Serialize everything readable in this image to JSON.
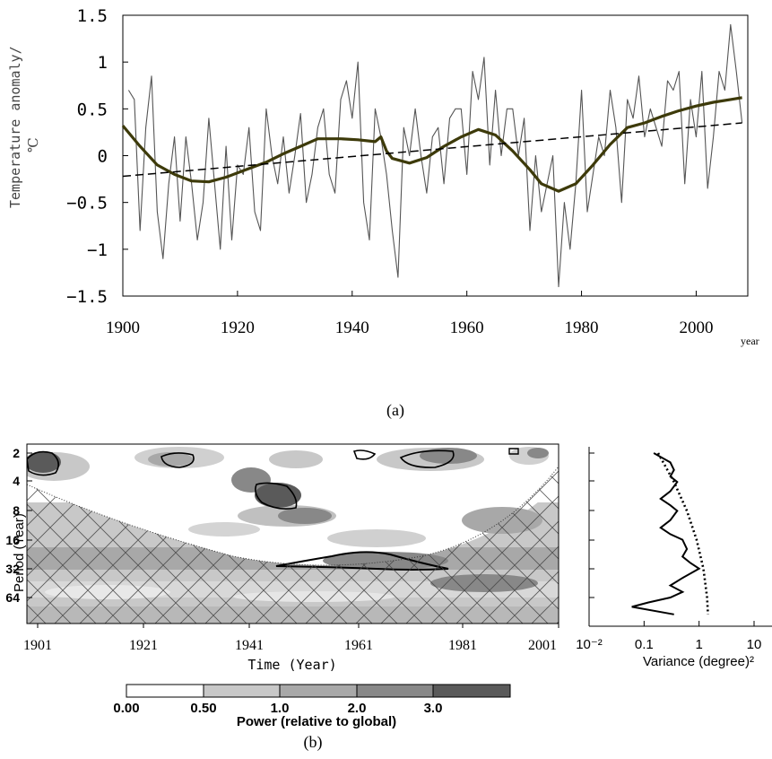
{
  "figure": {
    "caption_a": "(a)",
    "caption_b": "(b)"
  },
  "chart_data": [
    {
      "type": "line",
      "panel": "(a)",
      "ylabel_line1": "Temperature anomaly/",
      "ylabel_line2": "℃",
      "xlabel": "year",
      "xlim": [
        1900,
        2009
      ],
      "ylim": [
        -1.5,
        1.5
      ],
      "x_ticks": [
        1900,
        1920,
        1940,
        1960,
        1980,
        2000
      ],
      "y_ticks": [
        1.5,
        1,
        0.5,
        0,
        -0.5,
        -1,
        -1.5
      ],
      "y_tick_labels": [
        "1.5",
        "1",
        "0.5",
        "0",
        "−0.5",
        "−1",
        "−1.5"
      ],
      "series": [
        {
          "style": "thin grey line",
          "color": "#555555",
          "x": [
            1901,
            1902,
            1903,
            1904,
            1905,
            1906,
            1907,
            1908,
            1909,
            1910,
            1911,
            1912,
            1913,
            1914,
            1915,
            1916,
            1917,
            1918,
            1919,
            1920,
            1921,
            1922,
            1923,
            1924,
            1925,
            1926,
            1927,
            1928,
            1929,
            1930,
            1931,
            1932,
            1933,
            1934,
            1935,
            1936,
            1937,
            1938,
            1939,
            1940,
            1941,
            1942,
            1943,
            1944,
            1945,
            1946,
            1947,
            1948,
            1949,
            1950,
            1951,
            1952,
            1953,
            1954,
            1955,
            1956,
            1957,
            1958,
            1959,
            1960,
            1961,
            1962,
            1963,
            1964,
            1965,
            1966,
            1967,
            1968,
            1969,
            1970,
            1971,
            1972,
            1973,
            1974,
            1975,
            1976,
            1977,
            1978,
            1979,
            1980,
            1981,
            1982,
            1983,
            1984,
            1985,
            1986,
            1987,
            1988,
            1989,
            1990,
            1991,
            1992,
            1993,
            1994,
            1995,
            1996,
            1997,
            1998,
            1999,
            2000,
            2001,
            2002,
            2003,
            2004,
            2005,
            2006,
            2007,
            2008
          ],
          "values": [
            0.7,
            0.6,
            -0.8,
            0.3,
            0.85,
            -0.6,
            -1.1,
            -0.3,
            0.2,
            -0.7,
            0.2,
            -0.3,
            -0.9,
            -0.5,
            0.4,
            -0.3,
            -1.0,
            0.1,
            -0.9,
            -0.1,
            -0.2,
            0.3,
            -0.6,
            -0.8,
            0.5,
            0.0,
            -0.3,
            0.2,
            -0.4,
            0.0,
            0.45,
            -0.5,
            -0.2,
            0.3,
            0.5,
            -0.2,
            -0.4,
            0.6,
            0.8,
            0.4,
            1.0,
            -0.5,
            -0.9,
            0.5,
            0.2,
            -0.2,
            -0.8,
            -1.3,
            0.3,
            0.0,
            0.5,
            0.0,
            -0.4,
            0.2,
            0.3,
            -0.3,
            0.4,
            0.5,
            0.5,
            -0.2,
            0.9,
            0.6,
            1.05,
            -0.1,
            0.7,
            0.0,
            0.5,
            0.5,
            0.0,
            0.4,
            -0.8,
            0.0,
            -0.6,
            -0.3,
            0.0,
            -1.4,
            -0.5,
            -1.0,
            -0.3,
            0.7,
            -0.6,
            -0.2,
            0.2,
            0.0,
            0.7,
            0.3,
            -0.5,
            0.6,
            0.4,
            0.85,
            0.2,
            0.5,
            0.3,
            0.1,
            0.8,
            0.7,
            0.9,
            -0.3,
            0.6,
            0.2,
            0.9,
            -0.35,
            0.2,
            0.9,
            0.7,
            1.4,
            0.9,
            0.35
          ]
        },
        {
          "style": "thick olive smoothed curve",
          "color": "#3d3a0a",
          "x": [
            1900,
            1903,
            1906,
            1909,
            1912,
            1915,
            1918,
            1921,
            1925,
            1928,
            1931,
            1934,
            1938,
            1941,
            1944,
            1945,
            1946,
            1947,
            1950,
            1953,
            1956,
            1959,
            1962,
            1965,
            1968,
            1971,
            1973,
            1976,
            1979,
            1982,
            1985,
            1988,
            1991,
            1994,
            1997,
            2000,
            2003,
            2006,
            2008
          ],
          "values": [
            0.32,
            0.1,
            -0.1,
            -0.2,
            -0.27,
            -0.28,
            -0.23,
            -0.16,
            -0.07,
            0.02,
            0.1,
            0.18,
            0.18,
            0.17,
            0.15,
            0.2,
            0.05,
            -0.03,
            -0.08,
            -0.02,
            0.1,
            0.2,
            0.28,
            0.22,
            0.05,
            -0.15,
            -0.3,
            -0.38,
            -0.3,
            -0.1,
            0.12,
            0.3,
            0.35,
            0.42,
            0.48,
            0.53,
            0.57,
            0.6,
            0.62
          ]
        },
        {
          "style": "dashed black linear trend",
          "color": "#000000",
          "x": [
            1900,
            2008
          ],
          "values": [
            -0.22,
            0.35
          ]
        }
      ]
    },
    {
      "type": "heatmap",
      "panel": "(b)",
      "subtype": "wavelet power spectrum",
      "xlabel": "Time (Year)",
      "ylabel": "Period (Year)",
      "x_ticks": [
        "1901",
        "1921",
        "1941",
        "1961",
        "1981",
        "2001"
      ],
      "y_ticks": [
        "2",
        "4",
        "8",
        "16",
        "32",
        "64"
      ],
      "colorbar": {
        "label": "Power (relative to global)",
        "tick_labels": [
          "0.00",
          "0.50",
          "1.0",
          "2.0",
          "3.0"
        ],
        "levels": [
          "#ffffff",
          "#c8c8c8",
          "#a8a8a8",
          "#888888",
          "#5a5a5a"
        ]
      },
      "significant_regions": [
        {
          "time_center": 1903,
          "period": 2.6
        },
        {
          "time_center": 1921,
          "period": 2.4
        },
        {
          "time_center": 1942,
          "period": 5.5
        },
        {
          "time_center": 1956,
          "period": 2.3
        },
        {
          "time_center": 1975,
          "period": 2.4
        },
        {
          "time_center": 1966,
          "period": 32
        }
      ]
    },
    {
      "type": "line",
      "panel": "(b) global wavelet spectrum",
      "xlabel": "Variance (degree)²",
      "xscale": "log",
      "x_tick_labels": [
        "10⁻²",
        "0.1",
        "1",
        "10"
      ],
      "series": [
        {
          "style": "solid",
          "period": [
            2,
            2.5,
            3,
            3.5,
            4,
            5,
            6,
            7,
            8,
            10,
            12,
            14,
            16,
            20,
            24,
            28,
            32,
            40,
            48,
            56,
            64,
            72,
            80,
            96
          ],
          "variance": [
            0.15,
            0.3,
            0.35,
            0.3,
            0.4,
            0.3,
            0.2,
            0.3,
            0.4,
            0.3,
            0.2,
            0.3,
            0.5,
            0.6,
            0.5,
            0.7,
            1.0,
            0.5,
            0.3,
            0.5,
            0.3,
            0.12,
            0.06,
            0.35
          ]
        },
        {
          "style": "dotted (significance)",
          "period": [
            2,
            4,
            8,
            16,
            32,
            64,
            96
          ],
          "variance": [
            0.18,
            0.35,
            0.6,
            0.9,
            1.2,
            1.4,
            1.45
          ]
        }
      ]
    }
  ]
}
